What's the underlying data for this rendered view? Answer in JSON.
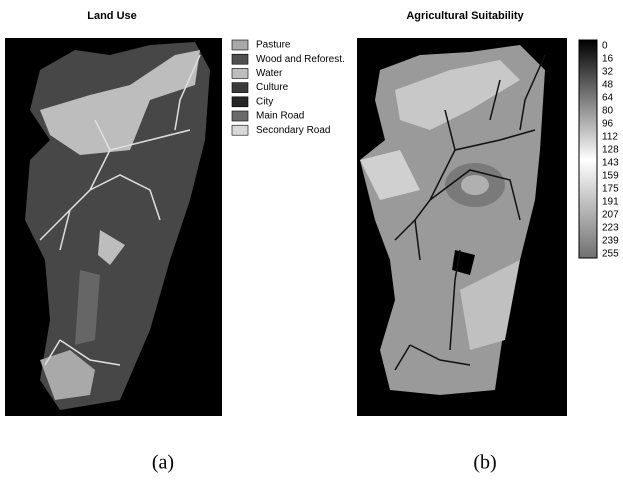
{
  "panels": [
    {
      "title": "Land Use",
      "caption": "(a)",
      "legend": [
        {
          "label": "Pasture",
          "color": "#a9a9a9"
        },
        {
          "label": "Wood and Reforest.",
          "color": "#505050"
        },
        {
          "label": "Water",
          "color": "#bdbdbd"
        },
        {
          "label": "Culture",
          "color": "#3a3a3a"
        },
        {
          "label": "City",
          "color": "#262626"
        },
        {
          "label": "Main Road",
          "color": "#6a6a6a"
        },
        {
          "label": "Secondary Road",
          "color": "#d9d9d9"
        }
      ]
    },
    {
      "title": "Agricultural Suitability",
      "caption": "(b)",
      "colorbar": [
        "0",
        "16",
        "32",
        "48",
        "64",
        "80",
        "96",
        "112",
        "128",
        "143",
        "159",
        "175",
        "191",
        "207",
        "223",
        "239",
        "255"
      ]
    }
  ]
}
